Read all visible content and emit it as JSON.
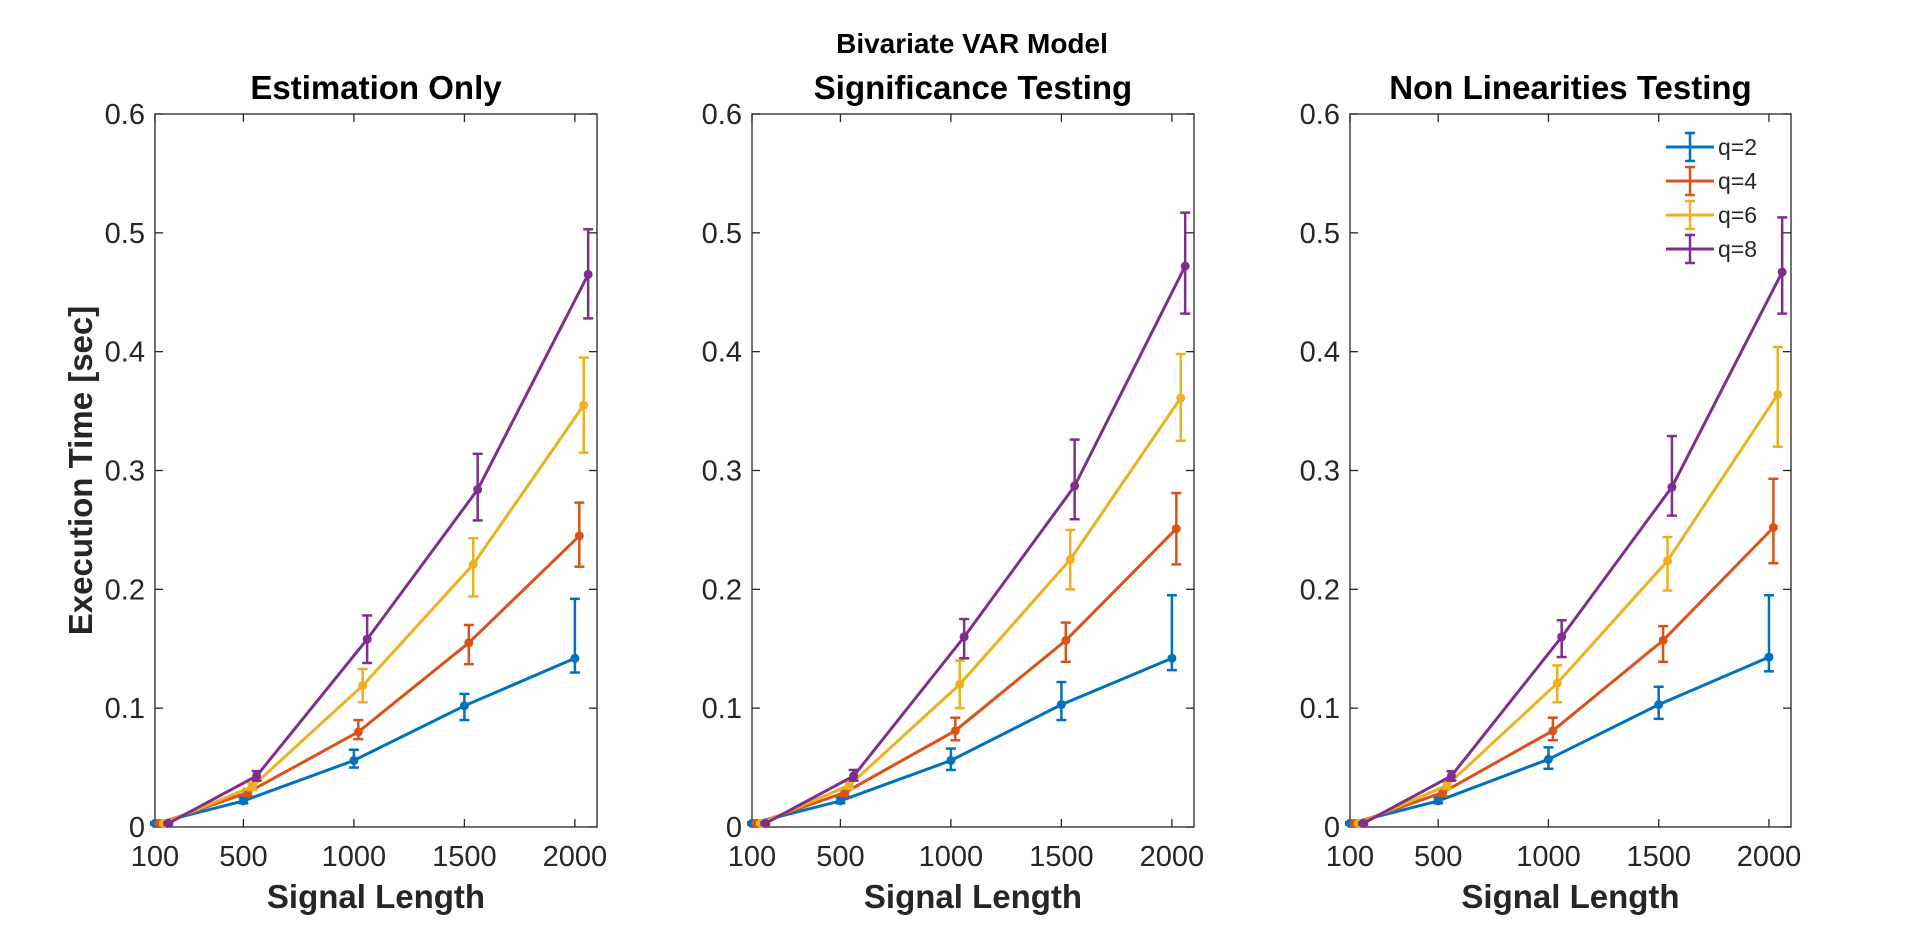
{
  "suptitle": "Bivariate VAR Model",
  "colors": {
    "q=2": "#0072BD",
    "q=4": "#D95319",
    "q=6": "#EDB120",
    "q=8": "#7E2F8E"
  },
  "chart_data": [
    {
      "type": "line",
      "title": "Estimation Only",
      "xlabel": "Signal Length",
      "ylabel": "Execution Time [sec]",
      "xlim": [
        100,
        2100
      ],
      "ylim": [
        0,
        0.6
      ],
      "xticks": [
        "100",
        "500",
        "1000",
        "1500",
        "2000"
      ],
      "yticks": [
        "0",
        "0.1",
        "0.2",
        "0.3",
        "0.4",
        "0.5",
        "0.6"
      ],
      "grid": false,
      "legend": "none",
      "series": [
        {
          "name": "q=2",
          "x": [
            100,
            500,
            1000,
            1500,
            2000
          ],
          "y": [
            0.003,
            0.022,
            0.056,
            0.102,
            0.142
          ],
          "err_low": [
            0.001,
            0.002,
            0.006,
            0.012,
            0.012
          ],
          "err_high": [
            0.001,
            0.003,
            0.009,
            0.01,
            0.05
          ]
        },
        {
          "name": "q=4",
          "x": [
            120,
            520,
            1020,
            1520,
            2020
          ],
          "y": [
            0.003,
            0.029,
            0.08,
            0.155,
            0.245
          ],
          "err_low": [
            0.001,
            0.003,
            0.006,
            0.018,
            0.026
          ],
          "err_high": [
            0.001,
            0.003,
            0.01,
            0.015,
            0.028
          ]
        },
        {
          "name": "q=6",
          "x": [
            140,
            540,
            1040,
            1540,
            2040
          ],
          "y": [
            0.003,
            0.034,
            0.119,
            0.221,
            0.355
          ],
          "err_low": [
            0.001,
            0.003,
            0.014,
            0.027,
            0.04
          ],
          "err_high": [
            0.001,
            0.003,
            0.014,
            0.022,
            0.04
          ]
        },
        {
          "name": "q=8",
          "x": [
            160,
            560,
            1060,
            1560,
            2060
          ],
          "y": [
            0.003,
            0.043,
            0.158,
            0.284,
            0.465
          ],
          "err_low": [
            0.001,
            0.004,
            0.02,
            0.026,
            0.037
          ],
          "err_high": [
            0.001,
            0.004,
            0.02,
            0.03,
            0.038
          ]
        }
      ]
    },
    {
      "type": "line",
      "title": "Significance Testing",
      "xlabel": "Signal Length",
      "ylabel": "",
      "xlim": [
        100,
        2100
      ],
      "ylim": [
        0,
        0.6
      ],
      "xticks": [
        "100",
        "500",
        "1000",
        "1500",
        "2000"
      ],
      "yticks": [
        "0",
        "0.1",
        "0.2",
        "0.3",
        "0.4",
        "0.5",
        "0.6"
      ],
      "grid": false,
      "legend": "none",
      "series": [
        {
          "name": "q=2",
          "x": [
            100,
            500,
            1000,
            1500,
            2000
          ],
          "y": [
            0.003,
            0.022,
            0.056,
            0.103,
            0.142
          ],
          "err_low": [
            0.001,
            0.002,
            0.008,
            0.013,
            0.01
          ],
          "err_high": [
            0.001,
            0.003,
            0.01,
            0.019,
            0.053
          ]
        },
        {
          "name": "q=4",
          "x": [
            120,
            520,
            1020,
            1520,
            2020
          ],
          "y": [
            0.003,
            0.029,
            0.081,
            0.157,
            0.251
          ],
          "err_low": [
            0.001,
            0.003,
            0.008,
            0.018,
            0.03
          ],
          "err_high": [
            0.001,
            0.003,
            0.011,
            0.015,
            0.03
          ]
        },
        {
          "name": "q=6",
          "x": [
            140,
            540,
            1040,
            1540,
            2040
          ],
          "y": [
            0.003,
            0.035,
            0.12,
            0.225,
            0.361
          ],
          "err_low": [
            0.001,
            0.003,
            0.02,
            0.025,
            0.036
          ],
          "err_high": [
            0.001,
            0.003,
            0.02,
            0.025,
            0.037
          ]
        },
        {
          "name": "q=8",
          "x": [
            160,
            560,
            1060,
            1560,
            2060
          ],
          "y": [
            0.003,
            0.043,
            0.16,
            0.287,
            0.472
          ],
          "err_low": [
            0.001,
            0.004,
            0.018,
            0.028,
            0.04
          ],
          "err_high": [
            0.001,
            0.005,
            0.015,
            0.039,
            0.045
          ]
        }
      ]
    },
    {
      "type": "line",
      "title": "Non Linearities Testing",
      "xlabel": "Signal Length",
      "ylabel": "",
      "xlim": [
        100,
        2100
      ],
      "ylim": [
        0,
        0.6
      ],
      "xticks": [
        "100",
        "500",
        "1000",
        "1500",
        "2000"
      ],
      "yticks": [
        "0",
        "0.1",
        "0.2",
        "0.3",
        "0.4",
        "0.5",
        "0.6"
      ],
      "grid": false,
      "legend": "top-right",
      "series": [
        {
          "name": "q=2",
          "x": [
            100,
            500,
            1000,
            1500,
            2000
          ],
          "y": [
            0.003,
            0.022,
            0.057,
            0.103,
            0.143
          ],
          "err_low": [
            0.001,
            0.002,
            0.008,
            0.012,
            0.012
          ],
          "err_high": [
            0.001,
            0.003,
            0.01,
            0.015,
            0.052
          ]
        },
        {
          "name": "q=4",
          "x": [
            120,
            520,
            1020,
            1520,
            2020
          ],
          "y": [
            0.003,
            0.029,
            0.081,
            0.157,
            0.252
          ],
          "err_low": [
            0.001,
            0.003,
            0.008,
            0.018,
            0.03
          ],
          "err_high": [
            0.001,
            0.003,
            0.011,
            0.012,
            0.041
          ]
        },
        {
          "name": "q=6",
          "x": [
            140,
            540,
            1040,
            1540,
            2040
          ],
          "y": [
            0.003,
            0.035,
            0.121,
            0.224,
            0.364
          ],
          "err_low": [
            0.001,
            0.003,
            0.016,
            0.025,
            0.044
          ],
          "err_high": [
            0.001,
            0.003,
            0.015,
            0.02,
            0.04
          ]
        },
        {
          "name": "q=8",
          "x": [
            160,
            560,
            1060,
            1560,
            2060
          ],
          "y": [
            0.003,
            0.043,
            0.16,
            0.286,
            0.467
          ],
          "err_low": [
            0.001,
            0.004,
            0.017,
            0.024,
            0.035
          ],
          "err_high": [
            0.001,
            0.004,
            0.014,
            0.043,
            0.046
          ]
        }
      ]
    }
  ]
}
